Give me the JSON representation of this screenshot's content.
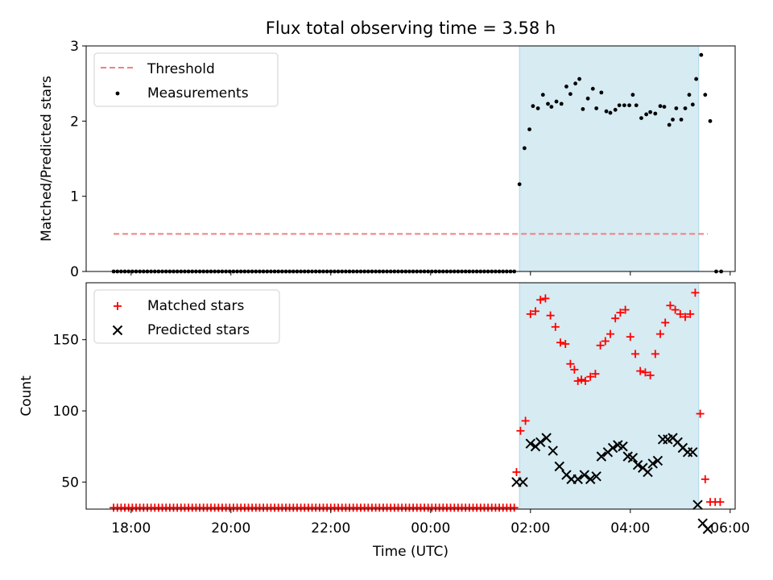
{
  "title": "Flux total observing time = 3.58 h",
  "xlabel": "Time (UTC)",
  "colors": {
    "highlight": "#add8e6",
    "threshold": "#f08080",
    "measurements": "#000000",
    "matched": "#ff0000",
    "predicted": "#000000"
  },
  "chart_data": [
    {
      "type": "scatter",
      "ylabel": "Matched/Predicted stars",
      "ylim": [
        0,
        3
      ],
      "yticks": [
        "0",
        "1",
        "2",
        "3"
      ],
      "x_axis": "time (UTC, hours after 00:00 of first day)",
      "xlim": [
        17.1,
        30.1
      ],
      "legend_position": "top-left",
      "legend": {
        "threshold": "Threshold",
        "measurements": "Measurements"
      },
      "highlight_span": {
        "start": 25.78,
        "end": 29.37
      },
      "threshold": {
        "value": 0.5,
        "x_start": 17.65,
        "x_end": 29.55
      },
      "series": [
        {
          "name": "Measurements",
          "points": [
            [
              25.78,
              1.16
            ],
            [
              25.88,
              1.64
            ],
            [
              25.98,
              1.89
            ],
            [
              26.05,
              2.2
            ],
            [
              26.15,
              2.17
            ],
            [
              26.25,
              2.35
            ],
            [
              26.35,
              2.23
            ],
            [
              26.42,
              2.19
            ],
            [
              26.52,
              2.26
            ],
            [
              26.62,
              2.23
            ],
            [
              26.72,
              2.46
            ],
            [
              26.8,
              2.36
            ],
            [
              26.9,
              2.5
            ],
            [
              26.98,
              2.56
            ],
            [
              27.05,
              2.16
            ],
            [
              27.15,
              2.3
            ],
            [
              27.25,
              2.43
            ],
            [
              27.32,
              2.17
            ],
            [
              27.42,
              2.38
            ],
            [
              27.52,
              2.13
            ],
            [
              27.6,
              2.11
            ],
            [
              27.7,
              2.15
            ],
            [
              27.78,
              2.21
            ],
            [
              27.88,
              2.21
            ],
            [
              27.98,
              2.21
            ],
            [
              28.05,
              2.35
            ],
            [
              28.12,
              2.21
            ],
            [
              28.22,
              2.04
            ],
            [
              28.32,
              2.09
            ],
            [
              28.4,
              2.12
            ],
            [
              28.5,
              2.1
            ],
            [
              28.6,
              2.2
            ],
            [
              28.68,
              2.19
            ],
            [
              28.78,
              1.95
            ],
            [
              28.85,
              2.02
            ],
            [
              28.92,
              2.17
            ],
            [
              29.02,
              2.02
            ],
            [
              29.1,
              2.17
            ],
            [
              29.18,
              2.35
            ],
            [
              29.25,
              2.22
            ],
            [
              29.32,
              2.56
            ],
            [
              29.42,
              2.88
            ],
            [
              29.5,
              2.35
            ],
            [
              29.6,
              2.0
            ],
            [
              29.72,
              0.0
            ],
            [
              29.82,
              0.0
            ]
          ],
          "baseline": {
            "x_start": 17.65,
            "x_end": 25.72,
            "step": 0.075,
            "value": 0.0
          }
        }
      ]
    },
    {
      "type": "scatter",
      "ylabel": "Count",
      "ylim": [
        31,
        190
      ],
      "yticks": [
        "50",
        "100",
        "150"
      ],
      "xticks": [
        "18:00",
        "20:00",
        "22:00",
        "00:00",
        "02:00",
        "04:00",
        "06:00"
      ],
      "xtick_values": [
        18,
        20,
        22,
        24,
        26,
        28,
        30
      ],
      "xlim": [
        17.1,
        30.1
      ],
      "legend_position": "top-left",
      "legend": {
        "matched": "Matched stars",
        "predicted": "Predicted stars"
      },
      "highlight_span": {
        "start": 25.78,
        "end": 29.37
      },
      "series": [
        {
          "name": "Matched stars",
          "points": [
            [
              25.72,
              57
            ],
            [
              25.8,
              86
            ],
            [
              25.9,
              93
            ],
            [
              26.0,
              168
            ],
            [
              26.1,
              170
            ],
            [
              26.2,
              178
            ],
            [
              26.3,
              179
            ],
            [
              26.4,
              167
            ],
            [
              26.5,
              159
            ],
            [
              26.6,
              148
            ],
            [
              26.7,
              147
            ],
            [
              26.8,
              133
            ],
            [
              26.88,
              129
            ],
            [
              26.95,
              121
            ],
            [
              27.02,
              122
            ],
            [
              27.1,
              121
            ],
            [
              27.2,
              124
            ],
            [
              27.3,
              126
            ],
            [
              27.4,
              146
            ],
            [
              27.5,
              149
            ],
            [
              27.6,
              154
            ],
            [
              27.7,
              165
            ],
            [
              27.8,
              169
            ],
            [
              27.9,
              171
            ],
            [
              28.0,
              152
            ],
            [
              28.1,
              140
            ],
            [
              28.2,
              128
            ],
            [
              28.3,
              127
            ],
            [
              28.4,
              125
            ],
            [
              28.5,
              140
            ],
            [
              28.6,
              154
            ],
            [
              28.7,
              162
            ],
            [
              28.8,
              174
            ],
            [
              28.9,
              171
            ],
            [
              29.0,
              168
            ],
            [
              29.1,
              166
            ],
            [
              29.2,
              168
            ],
            [
              29.3,
              183
            ],
            [
              29.4,
              98
            ],
            [
              29.5,
              52
            ],
            [
              29.6,
              36
            ],
            [
              29.7,
              36
            ],
            [
              29.8,
              36
            ]
          ],
          "baseline": {
            "x_start": 17.65,
            "x_end": 25.72,
            "step": 0.075,
            "value": 32
          }
        },
        {
          "name": "Predicted stars",
          "points": [
            [
              25.72,
              50
            ],
            [
              25.85,
              50
            ],
            [
              26.0,
              77
            ],
            [
              26.1,
              75
            ],
            [
              26.2,
              78
            ],
            [
              26.32,
              81
            ],
            [
              26.45,
              72
            ],
            [
              26.58,
              61
            ],
            [
              26.72,
              55
            ],
            [
              26.82,
              52
            ],
            [
              26.95,
              52
            ],
            [
              27.08,
              55
            ],
            [
              27.2,
              52
            ],
            [
              27.32,
              54
            ],
            [
              27.42,
              68
            ],
            [
              27.55,
              71
            ],
            [
              27.65,
              74
            ],
            [
              27.75,
              76
            ],
            [
              27.85,
              75
            ],
            [
              27.95,
              68
            ],
            [
              28.05,
              67
            ],
            [
              28.15,
              62
            ],
            [
              28.25,
              60
            ],
            [
              28.35,
              57
            ],
            [
              28.45,
              63
            ],
            [
              28.55,
              65
            ],
            [
              28.65,
              80
            ],
            [
              28.75,
              80
            ],
            [
              28.85,
              81
            ],
            [
              28.95,
              78
            ],
            [
              29.05,
              74
            ],
            [
              29.15,
              71
            ],
            [
              29.25,
              71
            ],
            [
              29.35,
              34
            ],
            [
              29.45,
              21
            ],
            [
              29.55,
              17
            ]
          ]
        }
      ]
    }
  ]
}
